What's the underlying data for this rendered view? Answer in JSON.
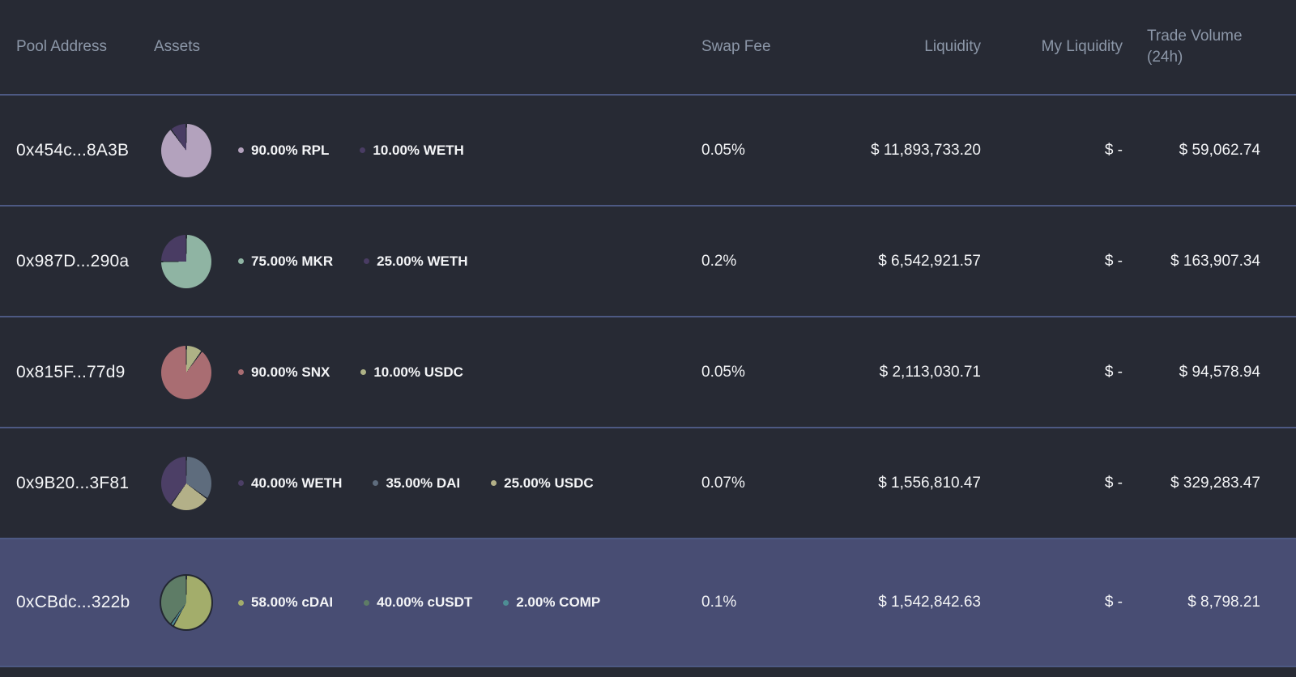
{
  "colors": {
    "background": "#272a34",
    "row_highlight": "#484d73",
    "header_text": "#8c97a8",
    "divider": "#4d5983",
    "primary_text": "#f2f3f5",
    "pie_gap": "#262a33",
    "pie_outline": "#232732"
  },
  "table": {
    "columns": [
      {
        "id": "pool_address",
        "label": "Pool Address"
      },
      {
        "id": "assets",
        "label": "Assets"
      },
      {
        "id": "swap_fee",
        "label": "Swap Fee"
      },
      {
        "id": "liquidity",
        "label": "Liquidity"
      },
      {
        "id": "my_liquidity",
        "label": "My Liquidity"
      },
      {
        "id": "trade_volume",
        "label": "Trade Volume (24h)"
      }
    ],
    "rows": [
      {
        "pool_address": "0x454c...8A3B",
        "assets": [
          {
            "pct": 90,
            "symbol": "RPL",
            "label": "90.00% RPL",
            "color": "#b3a2bd"
          },
          {
            "pct": 10,
            "symbol": "WETH",
            "label": "10.00% WETH",
            "color": "#493c63"
          }
        ],
        "pie_order": [
          0,
          1
        ],
        "highlighted": false,
        "pie_border": false,
        "swap_fee": "0.05%",
        "liquidity": "$ 11,893,733.20",
        "my_liquidity": "$ -",
        "trade_volume": "$ 59,062.74"
      },
      {
        "pool_address": "0x987D...290a",
        "assets": [
          {
            "pct": 75,
            "symbol": "MKR",
            "label": "75.00% MKR",
            "color": "#8fb4a3"
          },
          {
            "pct": 25,
            "symbol": "WETH",
            "label": "25.00% WETH",
            "color": "#493c63"
          }
        ],
        "pie_order": [
          0,
          1
        ],
        "highlighted": false,
        "pie_border": false,
        "swap_fee": "0.2%",
        "liquidity": "$ 6,542,921.57",
        "my_liquidity": "$ -",
        "trade_volume": "$ 163,907.34"
      },
      {
        "pool_address": "0x815F...77d9",
        "assets": [
          {
            "pct": 90,
            "symbol": "SNX",
            "label": "90.00% SNX",
            "color": "#a96d72"
          },
          {
            "pct": 10,
            "symbol": "USDC",
            "label": "10.00% USDC",
            "color": "#aeb286"
          }
        ],
        "pie_order": [
          1,
          0
        ],
        "highlighted": false,
        "pie_border": false,
        "swap_fee": "0.05%",
        "liquidity": "$ 2,113,030.71",
        "my_liquidity": "$ -",
        "trade_volume": "$ 94,578.94"
      },
      {
        "pool_address": "0x9B20...3F81",
        "assets": [
          {
            "pct": 40,
            "symbol": "WETH",
            "label": "40.00% WETH",
            "color": "#4c3f66"
          },
          {
            "pct": 35,
            "symbol": "DAI",
            "label": "35.00% DAI",
            "color": "#5e6c7d"
          },
          {
            "pct": 25,
            "symbol": "USDC",
            "label": "25.00% USDC",
            "color": "#b3b088"
          }
        ],
        "pie_order": [
          1,
          2,
          0
        ],
        "highlighted": false,
        "pie_border": false,
        "swap_fee": "0.07%",
        "liquidity": "$ 1,556,810.47",
        "my_liquidity": "$ -",
        "trade_volume": "$ 329,283.47"
      },
      {
        "pool_address": "0xCBdc...322b",
        "assets": [
          {
            "pct": 58,
            "symbol": "cDAI",
            "label": "58.00% cDAI",
            "color": "#a3ad6b"
          },
          {
            "pct": 40,
            "symbol": "cUSDT",
            "label": "40.00% cUSDT",
            "color": "#5e7c66"
          },
          {
            "pct": 2,
            "symbol": "COMP",
            "label": "2.00% COMP",
            "color": "#4e8d94"
          }
        ],
        "pie_order": [
          0,
          2,
          1
        ],
        "highlighted": true,
        "pie_border": true,
        "swap_fee": "0.1%",
        "liquidity": "$ 1,542,842.63",
        "my_liquidity": "$ -",
        "trade_volume": "$ 8,798.21"
      }
    ]
  }
}
